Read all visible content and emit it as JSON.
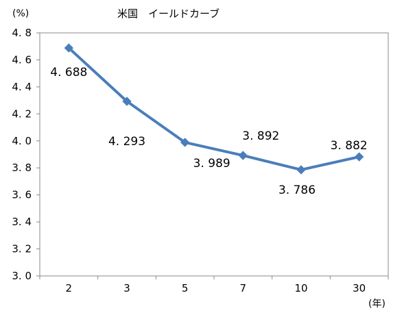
{
  "chart_data": {
    "type": "line",
    "title": "米国　イールドカーブ",
    "y_unit_label": "(%)",
    "x_unit_label": "(年)",
    "categories": [
      "2",
      "3",
      "5",
      "7",
      "10",
      "30"
    ],
    "series": [
      {
        "values": [
          4.688,
          4.293,
          3.989,
          3.892,
          3.786,
          3.882
        ]
      }
    ],
    "data_labels": [
      "4. 688",
      "4. 293",
      "3. 989",
      "3. 892",
      "3. 786",
      "3. 882"
    ],
    "y_ticks": [
      "3. 0",
      "3. 2",
      "3. 4",
      "3. 6",
      "3. 8",
      "4. 0",
      "4. 2",
      "4. 4",
      "4. 6",
      "4. 8"
    ],
    "ylim": [
      3.0,
      4.8
    ],
    "grid": false,
    "legend": "none",
    "line_color": "#4a7ebb",
    "marker": "diamond"
  }
}
